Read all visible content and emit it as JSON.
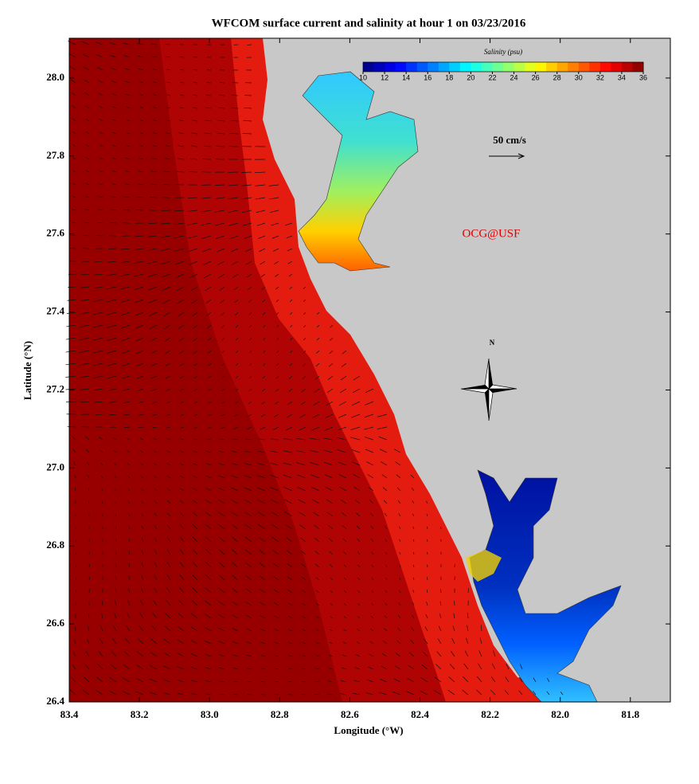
{
  "title": "WFCOM surface current and salinity at hour 1 on 03/23/2016",
  "map": {
    "xlabel": "Longitude (°W)",
    "ylabel": "Latitude (°N)",
    "xlim": [
      83.4,
      81.686
    ],
    "ylim": [
      26.4,
      28.102
    ],
    "xticks": [
      83.4,
      83.2,
      {
        "value": 83,
        "label": "83.0"
      },
      82.8,
      82.6,
      82.4,
      82.2,
      {
        "value": 82,
        "label": "82.0"
      },
      81.8
    ],
    "yticks": [
      {
        "value": 26.4,
        "label": "26.4"
      },
      26.6,
      26.8,
      {
        "value": 27,
        "label": "27.0"
      },
      27.2,
      27.4,
      27.6,
      27.8,
      {
        "value": 28,
        "label": "28.0"
      }
    ]
  },
  "colorbar": {
    "label": "Salinity (psu)",
    "lim": [
      10,
      36
    ],
    "ticks": [
      10,
      12,
      14,
      16,
      18,
      20,
      22,
      24,
      26,
      28,
      30,
      32,
      34,
      36
    ]
  },
  "annotations": {
    "scale_label": "50 cm/s",
    "credit": "OCG@USF",
    "north": "N"
  }
}
